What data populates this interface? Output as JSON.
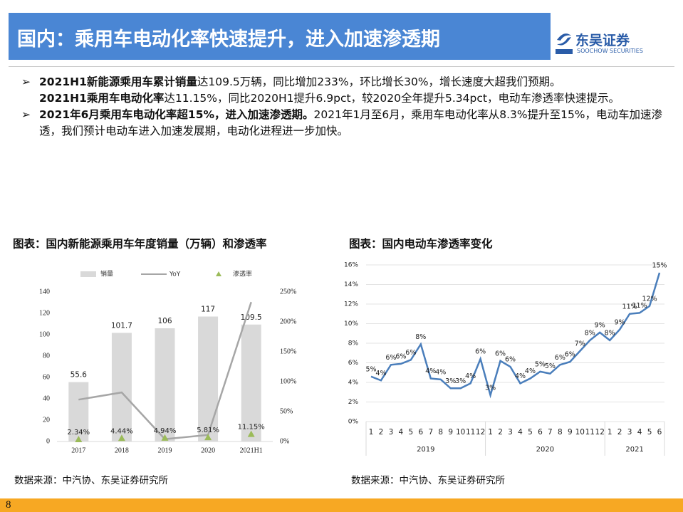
{
  "header": {
    "title": "国内：乘用车电动化率快速提升，进入加速渗透期",
    "logo_name": "东吴证券",
    "logo_subtitle": "SOOCHOW SECURITIES"
  },
  "bullets": [
    {
      "lines": [
        {
          "bold": "2021H1新能源乘用车累计销量",
          "text": "达109.5万辆，同比增加233%，环比增长30%，增长速度大超我们预期。"
        },
        {
          "bold": "2021H1乘用车电动化率",
          "text": "达11.15%，同比2020H1提升6.9pct，较2020全年提升5.34pct，电动车渗透率快速提示。"
        }
      ]
    },
    {
      "lines": [
        {
          "bold": "2021年6月乘用车电动化率超15%，进入加速渗透期。",
          "text": "2021年1月至6月，乘用车电动化率从8.3%提升至15%，电动车加速渗透，我们预计电动车进入加速发展期，电动化进程进一步加快。"
        }
      ]
    }
  ],
  "chart_data": [
    {
      "type": "bar",
      "title": "图表：国内新能源乘用车年度销量（万辆）和渗透率",
      "categories": [
        "2017",
        "2018",
        "2019",
        "2020",
        "2021H1"
      ],
      "series": [
        {
          "name": "销量",
          "type": "bar",
          "color": "#d9d9d9",
          "values": [
            55.6,
            101.7,
            106,
            117,
            109.5
          ]
        },
        {
          "name": "YoY",
          "type": "line",
          "axis": "y2",
          "color": "#a6a6a6",
          "values": [
            70,
            82,
            4,
            11,
            233
          ]
        },
        {
          "name": "渗透率",
          "type": "marker",
          "axis": "y2",
          "color": "#9bbb59",
          "values": [
            2.34,
            4.44,
            4.94,
            5.81,
            11.15
          ],
          "value_labels": [
            "2.34%",
            "4.44%",
            "4.94%",
            "5.81%",
            "11.15%"
          ]
        }
      ],
      "ylim": [
        0,
        140
      ],
      "yticks": [
        0,
        20,
        40,
        60,
        80,
        100,
        120,
        140
      ],
      "y2lim": [
        0,
        250
      ],
      "y2ticks": [
        {
          "value": 0,
          "label": "0%"
        },
        {
          "value": 50,
          "label": "50%"
        },
        {
          "value": 100,
          "label": "100%"
        },
        {
          "value": 150,
          "label": "150%"
        },
        {
          "value": 200,
          "label": "200%"
        },
        {
          "value": 250,
          "label": "250%"
        }
      ],
      "grid": false
    },
    {
      "type": "line",
      "title": "图表：国内电动车渗透率变化",
      "categories": [
        "1",
        "2",
        "3",
        "4",
        "5",
        "6",
        "7",
        "8",
        "9",
        "10",
        "11",
        "12",
        "1",
        "2",
        "3",
        "4",
        "5",
        "6",
        "7",
        "8",
        "9",
        "10",
        "11",
        "12",
        "1",
        "2",
        "3",
        "4",
        "5",
        "6"
      ],
      "category_groups": [
        {
          "label": "2019",
          "count": 12
        },
        {
          "label": "2020",
          "count": 12
        },
        {
          "label": "2021",
          "count": 6
        }
      ],
      "color": "#4a7ebb",
      "values": [
        4.6,
        4.2,
        5.8,
        5.9,
        6.3,
        7.9,
        4.4,
        4.3,
        3.4,
        3.4,
        3.9,
        6.4,
        2.7,
        6.2,
        5.6,
        3.9,
        4.4,
        5.1,
        4.9,
        5.8,
        6.1,
        7.2,
        8.3,
        9.1,
        8.3,
        9.4,
        11.0,
        11.1,
        11.8,
        15.2
      ],
      "value_labels": [
        "5%",
        "4%",
        "6%",
        "6%",
        "6%",
        "8%",
        "4%",
        "4%",
        "3%",
        "3%",
        "4%",
        "6%",
        "3%",
        "6%",
        "6%",
        "4%",
        "4%",
        "5%",
        "5%",
        "6%",
        "6%",
        "7%",
        "8%",
        "9%",
        "8%",
        "9%",
        "11%",
        "11%",
        "12%",
        "15%"
      ],
      "ylim": [
        0,
        16
      ],
      "yticks": [
        {
          "value": 0,
          "label": "0%"
        },
        {
          "value": 2,
          "label": "2%"
        },
        {
          "value": 4,
          "label": "4%"
        },
        {
          "value": 6,
          "label": "6%"
        },
        {
          "value": 8,
          "label": "8%"
        },
        {
          "value": 10,
          "label": "10%"
        },
        {
          "value": 12,
          "label": "12%"
        },
        {
          "value": 14,
          "label": "14%"
        },
        {
          "value": 16,
          "label": "16%"
        }
      ],
      "grid": true
    }
  ],
  "sources": [
    "数据来源：中汽协、东吴证券研究所",
    "数据来源：中汽协、东吴证券研究所"
  ],
  "page_number": "8"
}
